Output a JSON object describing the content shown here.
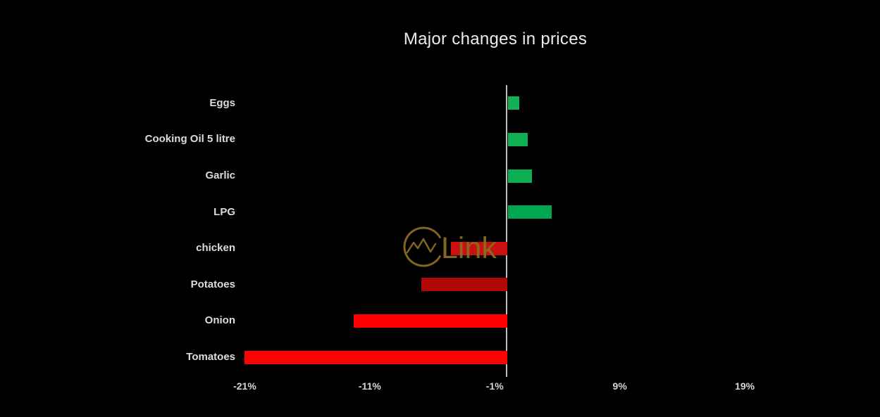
{
  "title": "Major changes in prices",
  "watermark": {
    "text": "Link",
    "icon": "mountain-circle-logo-icon",
    "color": "#8a6b22"
  },
  "colors": {
    "background": "#000000",
    "title_text": "#ececec",
    "category_label_text": "#dcdcdc",
    "tick_label_text": "#d6d6d6",
    "axis_line": "#bfbfbf",
    "positive_green": "#0bae51",
    "negative_red": "#fe0101"
  },
  "chart_data": {
    "type": "bar",
    "orientation": "horizontal",
    "title": "Major changes in prices",
    "categories": [
      "Eggs",
      "Cooking Oil 5 litre",
      "Garlic",
      "LPG",
      "chicken",
      "Potatoes",
      "Onion",
      "Tomatoes"
    ],
    "values": [
      0.9,
      1.6,
      1.9,
      3.5,
      -4.5,
      -6.9,
      -12.3,
      -21
    ],
    "unit": "%",
    "bar_colors": [
      "#12b155",
      "#0db052",
      "#0bae51",
      "#01a750",
      "#cb1010",
      "#b20707",
      "#fd0101",
      "#fe0101"
    ],
    "x_ticks": [
      "-21%",
      "-11%",
      "-1%",
      "9%",
      "19%"
    ],
    "x_tick_values": [
      -21,
      -11,
      -1,
      9,
      19
    ],
    "xlim": [
      -22.5,
      21
    ],
    "xlabel": "",
    "ylabel": "",
    "grid": false,
    "legend": false,
    "baseline": 0
  }
}
